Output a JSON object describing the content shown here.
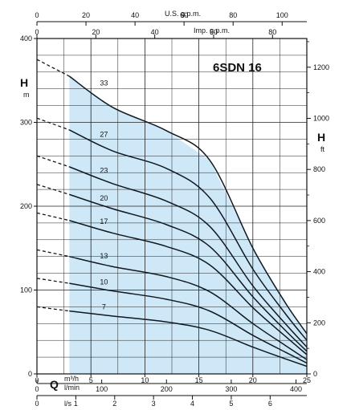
{
  "chart_data": {
    "type": "line",
    "title": "6SDN 16",
    "colors": {
      "region": "#cfe8f7",
      "curve": "#101820",
      "grid": "#222222"
    },
    "axes": {
      "q_m3h": {
        "label": "m³/h",
        "range": [
          0,
          25
        ],
        "ticks": [
          0,
          5,
          10,
          15,
          20,
          25
        ]
      },
      "q_lmin": {
        "label": "l/min",
        "range": [
          0,
          416.7
        ],
        "ticks": [
          0,
          100,
          200,
          300,
          400
        ]
      },
      "q_ls": {
        "label": "l/s",
        "range": [
          0,
          6.944
        ],
        "ticks": [
          0,
          1,
          2,
          3,
          4,
          5,
          6
        ]
      },
      "us_gpm": {
        "label": "U.S. g.p.m.",
        "range": [
          0,
          110.07
        ],
        "ticks": [
          0,
          20,
          40,
          60,
          80,
          100
        ]
      },
      "imp_gpm": {
        "label": "Imp. g.p.m.",
        "range": [
          0,
          91.65
        ],
        "ticks": [
          0,
          20,
          40,
          60,
          80
        ]
      },
      "h_m": {
        "label": "H",
        "unit": "m",
        "range": [
          0,
          400
        ],
        "ticks": [
          0,
          100,
          200,
          300,
          400
        ]
      },
      "h_ft": {
        "label": "H",
        "unit": "ft",
        "range": [
          0,
          1312.3
        ],
        "ticks": [
          0,
          200,
          400,
          600,
          800,
          1000,
          1200
        ]
      },
      "q_symbol": "Q"
    },
    "operating_range": {
      "q_min": 3,
      "q_max": 25
    },
    "series": [
      {
        "name": "33",
        "q": [
          3,
          7,
          12,
          16,
          20,
          23,
          25
        ],
        "h": [
          355,
          318,
          290,
          255,
          150,
          85,
          48
        ],
        "dashed_h0": 375,
        "label_at": [
          6.2,
          342
        ]
      },
      {
        "name": "27",
        "q": [
          3,
          7,
          12,
          16,
          20,
          23,
          25
        ],
        "h": [
          291,
          266,
          245,
          210,
          125,
          72,
          40
        ],
        "dashed_h0": 305,
        "label_at": [
          6.2,
          281
        ]
      },
      {
        "name": "23",
        "q": [
          3,
          7,
          12,
          16,
          20,
          23,
          25
        ],
        "h": [
          247,
          227,
          206,
          176,
          105,
          60,
          32
        ],
        "dashed_h0": 260,
        "label_at": [
          6.2,
          238
        ]
      },
      {
        "name": "20",
        "q": [
          3,
          7,
          12,
          16,
          20,
          23,
          25
        ],
        "h": [
          214,
          197,
          178,
          152,
          92,
          52,
          27
        ],
        "dashed_h0": 226,
        "label_at": [
          6.2,
          205
        ]
      },
      {
        "name": "17",
        "q": [
          3,
          7,
          12,
          16,
          20,
          23,
          25
        ],
        "h": [
          183,
          168,
          152,
          130,
          79,
          45,
          23
        ],
        "dashed_h0": 192,
        "label_at": [
          6.2,
          177
        ]
      },
      {
        "name": "13",
        "q": [
          3,
          7,
          12,
          16,
          20,
          23,
          25
        ],
        "h": [
          140,
          128,
          116,
          98,
          60,
          34,
          17
        ],
        "dashed_h0": 148,
        "label_at": [
          6.2,
          136
        ]
      },
      {
        "name": "10",
        "q": [
          3,
          7,
          12,
          16,
          20,
          23,
          25
        ],
        "h": [
          108,
          99,
          89,
          75,
          46,
          26,
          13
        ],
        "dashed_h0": 114,
        "label_at": [
          6.2,
          105
        ]
      },
      {
        "name": "7",
        "q": [
          3,
          7,
          12,
          16,
          20,
          23,
          25
        ],
        "h": [
          75,
          69,
          62,
          52,
          32,
          18,
          9
        ],
        "dashed_h0": 80,
        "label_at": [
          6.2,
          75
        ]
      }
    ]
  }
}
